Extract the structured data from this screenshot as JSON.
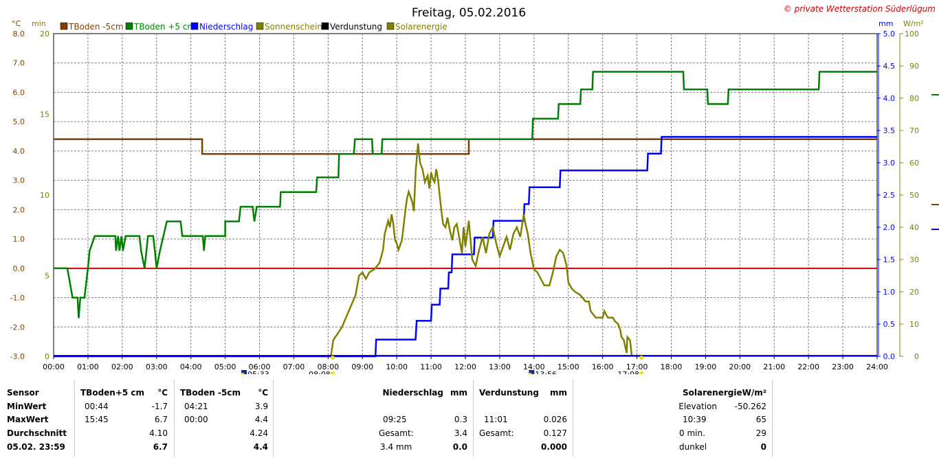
{
  "chart_data": {
    "type": "line",
    "title": "Freitag, 05.02.2016",
    "copyright": "© private Wetterstation Süderlügum",
    "x_ticks": [
      "00:00",
      "01:00",
      "02:00",
      "03:00",
      "04:00",
      "05:00",
      "06:00",
      "07:00",
      "08:00",
      "09:00",
      "10:00",
      "11:00",
      "12:00",
      "13:00",
      "14:00",
      "15:00",
      "16:00",
      "17:00",
      "18:00",
      "19:00",
      "20:00",
      "21:00",
      "22:00",
      "23:00",
      "24:00"
    ],
    "xlim_hours": [
      0,
      24
    ],
    "axes": {
      "temp": {
        "unit": "°C",
        "ticks": [
          "-3.0",
          "-2.0",
          "-1.0",
          "0.0",
          "1.0",
          "2.0",
          "3.0",
          "4.0",
          "5.0",
          "6.0",
          "7.0",
          "8.0"
        ],
        "range": [
          -3,
          8
        ]
      },
      "minutes": {
        "unit": "min",
        "ticks": [
          "0",
          "5",
          "10",
          "15",
          "20"
        ],
        "range": [
          0,
          20
        ]
      },
      "rain": {
        "unit": "mm",
        "ticks": [
          "0.0",
          "0.5",
          "1.0",
          "1.5",
          "2.0",
          "2.5",
          "3.0",
          "3.5",
          "4.0",
          "4.5",
          "5.0"
        ],
        "range": [
          0,
          5
        ]
      },
      "solar": {
        "unit": "W/m²",
        "ticks": [
          "0",
          "10",
          "20",
          "30",
          "40",
          "50",
          "60",
          "70",
          "80",
          "90",
          "100"
        ],
        "range": [
          0,
          100
        ]
      }
    },
    "legend": [
      {
        "label": "TBoden -5cm",
        "color": "#804000"
      },
      {
        "label": "TBoden +5 cm",
        "color": "#008000"
      },
      {
        "label": "Niederschlag",
        "color": "#0000ff"
      },
      {
        "label": "Sonnenschein",
        "color": "#808000"
      },
      {
        "label": "Verdunstung",
        "color": "#000000"
      },
      {
        "label": "Solarenergie",
        "color": "#808000"
      }
    ],
    "sun_events": [
      {
        "label": "05:33",
        "hour": 5.55,
        "kind": "dawn"
      },
      {
        "label": "08:08",
        "hour": 8.13,
        "kind": "sunrise"
      },
      {
        "label": "13:56",
        "hour": 13.93,
        "kind": "noon"
      },
      {
        "label": "17:08",
        "hour": 17.13,
        "kind": "sunset"
      }
    ],
    "zero_line_color": "#cc0000",
    "series": [
      {
        "name": "TBoden -5cm",
        "axis": "temp",
        "color": "#804000",
        "step": true,
        "points": [
          [
            0,
            4.4
          ],
          [
            4.33,
            4.4
          ],
          [
            4.33,
            3.9
          ],
          [
            12.1,
            3.9
          ],
          [
            12.1,
            4.4
          ],
          [
            24,
            4.4
          ]
        ]
      },
      {
        "name": "TBoden +5 cm",
        "axis": "temp",
        "color": "#008000",
        "step": true,
        "points": [
          [
            0,
            0
          ],
          [
            0.4,
            0
          ],
          [
            0.55,
            -1.0
          ],
          [
            0.7,
            -1.0
          ],
          [
            0.73,
            -1.7
          ],
          [
            0.78,
            -1.0
          ],
          [
            0.9,
            -1.0
          ],
          [
            1.0,
            0
          ],
          [
            1.05,
            0.6
          ],
          [
            1.2,
            1.1
          ],
          [
            1.8,
            1.1
          ],
          [
            1.82,
            0.6
          ],
          [
            1.88,
            1.1
          ],
          [
            1.92,
            0.6
          ],
          [
            1.98,
            1.1
          ],
          [
            2.02,
            0.6
          ],
          [
            2.1,
            1.1
          ],
          [
            2.5,
            1.1
          ],
          [
            2.55,
            0.6
          ],
          [
            2.65,
            0
          ],
          [
            2.75,
            1.1
          ],
          [
            2.9,
            1.1
          ],
          [
            2.95,
            0.6
          ],
          [
            3.0,
            0
          ],
          [
            3.1,
            0.6
          ],
          [
            3.3,
            1.6
          ],
          [
            3.7,
            1.6
          ],
          [
            3.75,
            1.1
          ],
          [
            4.35,
            1.1
          ],
          [
            4.38,
            0.6
          ],
          [
            4.42,
            1.1
          ],
          [
            5.0,
            1.1
          ],
          [
            5.0,
            1.6
          ],
          [
            5.4,
            1.6
          ],
          [
            5.45,
            2.1
          ],
          [
            5.8,
            2.1
          ],
          [
            5.85,
            1.6
          ],
          [
            5.92,
            2.1
          ],
          [
            6.6,
            2.1
          ],
          [
            6.62,
            2.6
          ],
          [
            7.65,
            2.6
          ],
          [
            7.68,
            3.1
          ],
          [
            8.3,
            3.1
          ],
          [
            8.32,
            3.9
          ],
          [
            8.75,
            3.9
          ],
          [
            8.78,
            4.4
          ],
          [
            9.28,
            4.4
          ],
          [
            9.3,
            3.9
          ],
          [
            9.56,
            3.9
          ],
          [
            9.58,
            4.4
          ],
          [
            13.95,
            4.4
          ],
          [
            13.97,
            5.1
          ],
          [
            14.7,
            5.1
          ],
          [
            14.72,
            5.6
          ],
          [
            15.35,
            5.6
          ],
          [
            15.37,
            6.1
          ],
          [
            15.7,
            6.1
          ],
          [
            15.72,
            6.7
          ],
          [
            18.35,
            6.7
          ],
          [
            18.37,
            6.1
          ],
          [
            19.05,
            6.1
          ],
          [
            19.07,
            5.6
          ],
          [
            19.65,
            5.6
          ],
          [
            19.67,
            6.1
          ],
          [
            22.3,
            6.1
          ],
          [
            22.32,
            6.7
          ],
          [
            24,
            6.7
          ]
        ]
      },
      {
        "name": "Niederschlag",
        "axis": "rain",
        "color": "#0000ff",
        "step": true,
        "points": [
          [
            0,
            0
          ],
          [
            9.38,
            0
          ],
          [
            9.4,
            0.26
          ],
          [
            10.55,
            0.26
          ],
          [
            10.58,
            0.55
          ],
          [
            11.0,
            0.55
          ],
          [
            11.02,
            0.8
          ],
          [
            11.25,
            0.8
          ],
          [
            11.27,
            1.05
          ],
          [
            11.5,
            1.05
          ],
          [
            11.52,
            1.3
          ],
          [
            11.6,
            1.3
          ],
          [
            11.62,
            1.58
          ],
          [
            12.25,
            1.58
          ],
          [
            12.27,
            1.84
          ],
          [
            12.8,
            1.84
          ],
          [
            12.82,
            2.1
          ],
          [
            13.7,
            2.1
          ],
          [
            13.72,
            2.36
          ],
          [
            13.85,
            2.36
          ],
          [
            13.87,
            2.62
          ],
          [
            14.75,
            2.62
          ],
          [
            14.77,
            2.88
          ],
          [
            17.3,
            2.88
          ],
          [
            17.32,
            3.14
          ],
          [
            17.7,
            3.14
          ],
          [
            17.72,
            3.4
          ],
          [
            24,
            3.4
          ]
        ]
      },
      {
        "name": "Solarenergie",
        "axis": "solar",
        "color": "#808000",
        "step": false,
        "points": [
          [
            8.08,
            0
          ],
          [
            8.15,
            5
          ],
          [
            8.4,
            9
          ],
          [
            8.6,
            14
          ],
          [
            8.8,
            19
          ],
          [
            8.9,
            25
          ],
          [
            9.0,
            26
          ],
          [
            9.1,
            24
          ],
          [
            9.2,
            26
          ],
          [
            9.35,
            27
          ],
          [
            9.5,
            29
          ],
          [
            9.6,
            33
          ],
          [
            9.65,
            38
          ],
          [
            9.75,
            42
          ],
          [
            9.8,
            40
          ],
          [
            9.85,
            44
          ],
          [
            9.9,
            41
          ],
          [
            9.95,
            36
          ],
          [
            10.0,
            35
          ],
          [
            10.05,
            33
          ],
          [
            10.15,
            36
          ],
          [
            10.25,
            45
          ],
          [
            10.3,
            49
          ],
          [
            10.35,
            51
          ],
          [
            10.45,
            48
          ],
          [
            10.5,
            45
          ],
          [
            10.55,
            57
          ],
          [
            10.62,
            66
          ],
          [
            10.68,
            60
          ],
          [
            10.75,
            58
          ],
          [
            10.82,
            54
          ],
          [
            10.9,
            56
          ],
          [
            10.95,
            52
          ],
          [
            11.0,
            57
          ],
          [
            11.05,
            55
          ],
          [
            11.1,
            54
          ],
          [
            11.15,
            58
          ],
          [
            11.2,
            55
          ],
          [
            11.25,
            50
          ],
          [
            11.3,
            45
          ],
          [
            11.35,
            41
          ],
          [
            11.42,
            40
          ],
          [
            11.48,
            43
          ],
          [
            11.55,
            39
          ],
          [
            11.62,
            36
          ],
          [
            11.68,
            40
          ],
          [
            11.75,
            41
          ],
          [
            11.8,
            38
          ],
          [
            11.85,
            35
          ],
          [
            11.9,
            32
          ],
          [
            11.95,
            40
          ],
          [
            12.0,
            34
          ],
          [
            12.05,
            38
          ],
          [
            12.1,
            42
          ],
          [
            12.15,
            36
          ],
          [
            12.2,
            30
          ],
          [
            12.3,
            28
          ],
          [
            12.4,
            33
          ],
          [
            12.5,
            37
          ],
          [
            12.6,
            32
          ],
          [
            12.7,
            38
          ],
          [
            12.8,
            40
          ],
          [
            12.9,
            35
          ],
          [
            13.0,
            31
          ],
          [
            13.1,
            34
          ],
          [
            13.2,
            37
          ],
          [
            13.3,
            33
          ],
          [
            13.4,
            38
          ],
          [
            13.5,
            40
          ],
          [
            13.6,
            37
          ],
          [
            13.7,
            44
          ],
          [
            13.75,
            41
          ],
          [
            13.82,
            38
          ],
          [
            13.9,
            32
          ],
          [
            14.0,
            27
          ],
          [
            14.1,
            26
          ],
          [
            14.2,
            24
          ],
          [
            14.3,
            22
          ],
          [
            14.45,
            22
          ],
          [
            14.55,
            26
          ],
          [
            14.65,
            31
          ],
          [
            14.75,
            33
          ],
          [
            14.85,
            32
          ],
          [
            14.95,
            28
          ],
          [
            15.0,
            23
          ],
          [
            15.1,
            21
          ],
          [
            15.2,
            20
          ],
          [
            15.35,
            19
          ],
          [
            15.5,
            17
          ],
          [
            15.6,
            17
          ],
          [
            15.65,
            14
          ],
          [
            15.8,
            12
          ],
          [
            16.0,
            12
          ],
          [
            16.05,
            14
          ],
          [
            16.15,
            12
          ],
          [
            16.3,
            12
          ],
          [
            16.35,
            11
          ],
          [
            16.45,
            10
          ],
          [
            16.52,
            8
          ],
          [
            16.55,
            6
          ],
          [
            16.62,
            5
          ],
          [
            16.7,
            1
          ],
          [
            16.72,
            6
          ],
          [
            16.8,
            5
          ],
          [
            16.85,
            0
          ]
        ]
      }
    ]
  },
  "table": {
    "headers": {
      "sensor": "Sensor",
      "tplus": "TBoden+5 cm",
      "tplus_unit": "°C",
      "tminus": "TBoden -5cm",
      "tminus_unit": "°C",
      "rain": "Niederschlag",
      "rain_unit": "mm",
      "evap": "Verdunstung",
      "evap_unit": "mm",
      "solar": "SolarenergieW/m²"
    },
    "rows": {
      "min": {
        "label": "MinWert",
        "tplus_time": "00:44",
        "tplus_val": "-1.7",
        "tminus_time": "04:21",
        "tminus_val": "3.9",
        "solar_label": "Elevation",
        "solar_val": "-50.262"
      },
      "max": {
        "label": "MaxWert",
        "tplus_time": "15:45",
        "tplus_val": "6.7",
        "tminus_time": "00:00",
        "tminus_val": "4.4",
        "rain_time": "09:25",
        "rain_val": "0.3",
        "evap_time": "11:01",
        "evap_val": "0.026",
        "solar_label": "10:39",
        "solar_val": "65"
      },
      "avg": {
        "label": "Durchschnitt",
        "tplus_val": "4.10",
        "tminus_val": "4.24",
        "rain_label": "Gesamt:",
        "rain_val": "3.4",
        "evap_label": "Gesamt:",
        "evap_val": "0.127",
        "solar_label": "0 min.",
        "solar_val": "29"
      },
      "last": {
        "label": "05.02. 23:59",
        "tplus_val": "6.7",
        "tminus_val": "4.4",
        "rain_label": "3.4 mm",
        "rain_val": "0.0",
        "evap_val": "0.000",
        "solar_label": "dunkel",
        "solar_val": "0"
      }
    }
  }
}
